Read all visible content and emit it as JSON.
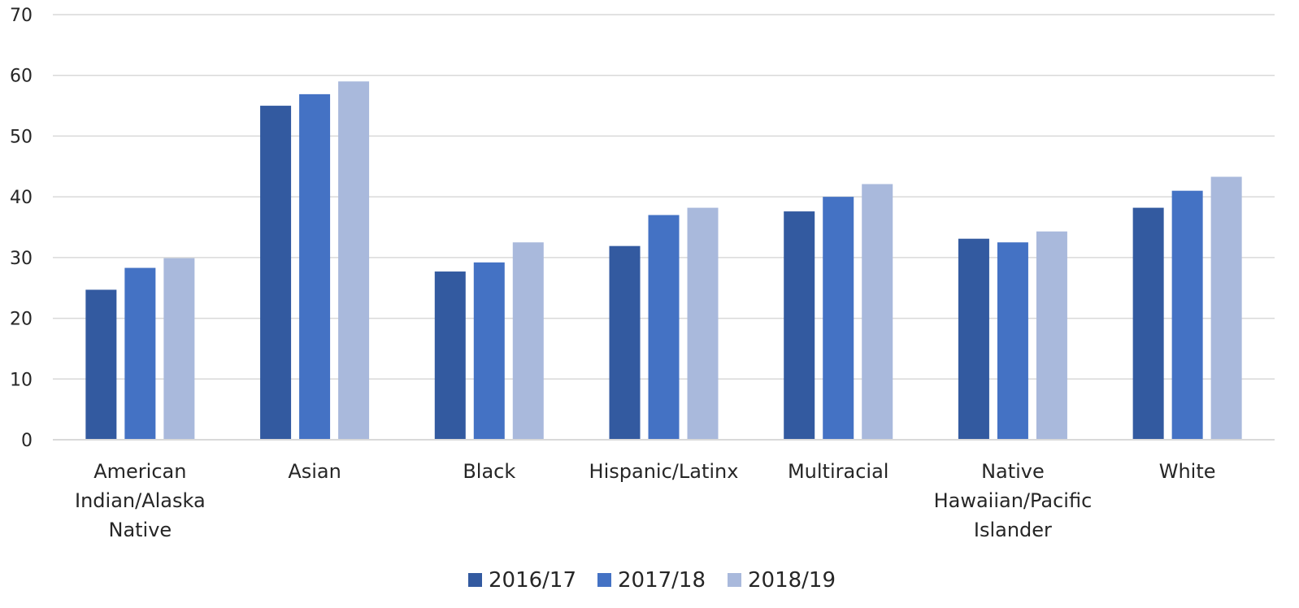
{
  "chart_data": {
    "type": "bar",
    "title": "",
    "xlabel": "",
    "ylabel": "",
    "ylim": [
      0,
      70
    ],
    "yticks": [
      0,
      10,
      20,
      30,
      40,
      50,
      60,
      70
    ],
    "grid": true,
    "legend_position": "bottom",
    "categories": [
      [
        "American",
        "Indian/Alaska",
        "Native"
      ],
      [
        "Asian"
      ],
      [
        "Black"
      ],
      [
        "Hispanic/Latinx"
      ],
      [
        "Multiracial"
      ],
      [
        "Native",
        "Hawaiian/Pacific",
        "Islander"
      ],
      [
        "White"
      ]
    ],
    "series": [
      {
        "name": "2016/17",
        "color": "#335aa0",
        "values": [
          24.7,
          55.0,
          27.7,
          31.9,
          37.6,
          33.1,
          38.2
        ]
      },
      {
        "name": "2017/18",
        "color": "#4472c4",
        "values": [
          28.3,
          56.9,
          29.2,
          37.0,
          40.0,
          32.5,
          41.0
        ]
      },
      {
        "name": "2018/19",
        "color": "#a9b9dc",
        "values": [
          29.9,
          59.0,
          32.5,
          38.2,
          42.1,
          34.3,
          43.3
        ]
      }
    ]
  }
}
